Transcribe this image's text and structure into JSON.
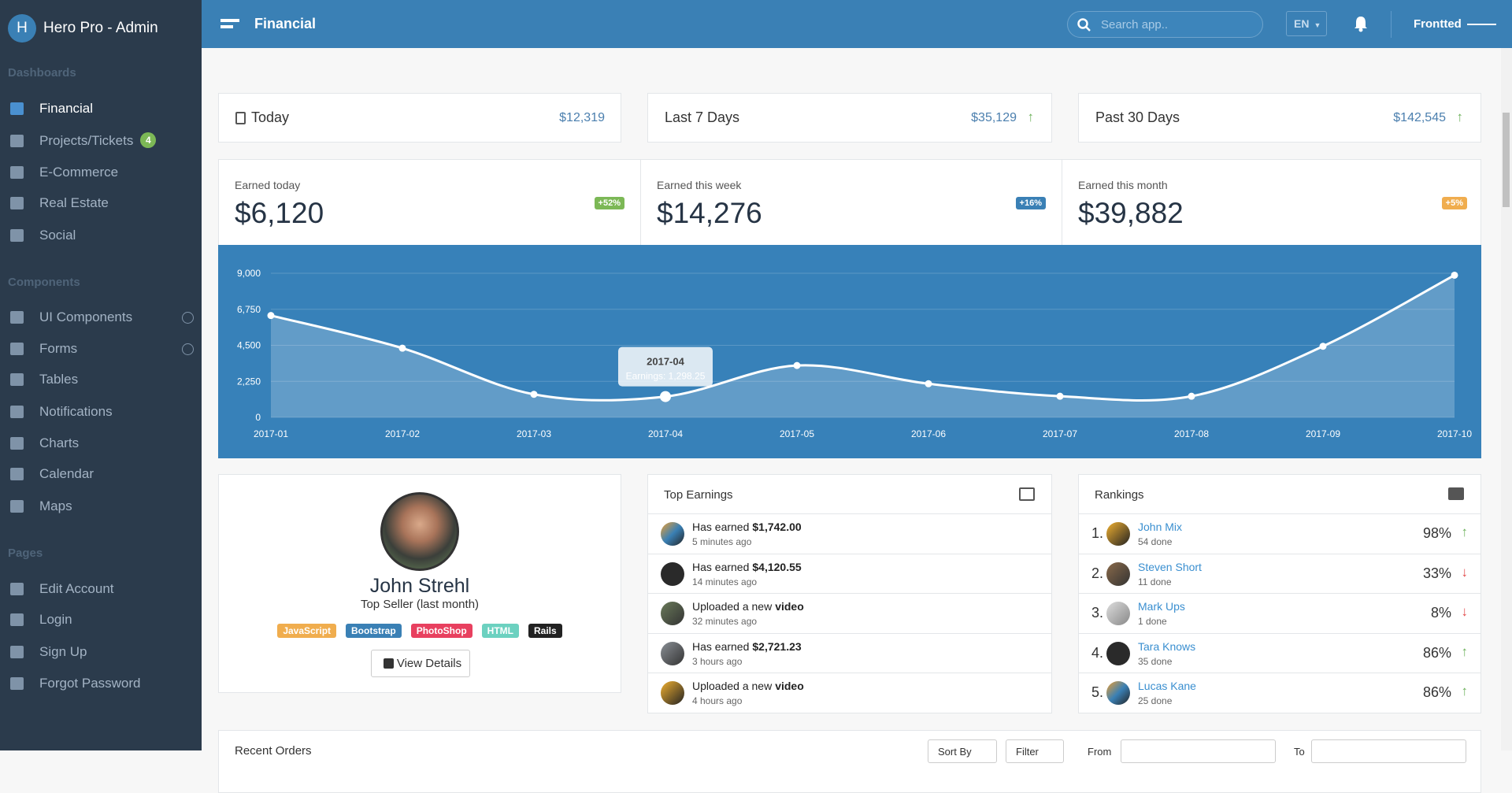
{
  "sidebar": {
    "logo": "H",
    "brand": "Hero Pro - Admin",
    "sections": [
      {
        "title": "Dashboards",
        "items": [
          {
            "label": "Financial"
          },
          {
            "label": "Projects/Tickets",
            "badge": "4"
          },
          {
            "label": "E-Commerce"
          },
          {
            "label": "Real Estate"
          },
          {
            "label": "Social"
          }
        ]
      },
      {
        "title": "Components",
        "items": [
          {
            "label": "UI Components"
          },
          {
            "label": "Forms"
          },
          {
            "label": "Tables"
          },
          {
            "label": "Notifications"
          },
          {
            "label": "Charts"
          },
          {
            "label": "Calendar"
          },
          {
            "label": "Maps"
          }
        ]
      },
      {
        "title": "Pages",
        "items": [
          {
            "label": "Edit Account"
          },
          {
            "label": "Login"
          },
          {
            "label": "Sign Up"
          },
          {
            "label": "Forgot Password"
          }
        ]
      }
    ]
  },
  "header": {
    "title": "Financial",
    "search_placeholder": "Search app..",
    "language": "EN",
    "user": "Frontted"
  },
  "summary": [
    {
      "label": "Today",
      "value": "$12,319"
    },
    {
      "label": "Last 7 Days",
      "value": "$35,129"
    },
    {
      "label": "Past 30 Days",
      "value": "$142,545"
    }
  ],
  "earnings": [
    {
      "label": "Earned today",
      "value": "$6,120",
      "change": "+52%",
      "color": "#7cb856"
    },
    {
      "label": "Earned this week",
      "value": "$14,276",
      "change": "+16%",
      "color": "#3a80b5"
    },
    {
      "label": "Earned this month",
      "value": "$39,882",
      "change": "+5%",
      "color": "#f0ad4e"
    }
  ],
  "chart_data": {
    "type": "line",
    "categories": [
      "2017-01",
      "2017-02",
      "2017-03",
      "2017-04",
      "2017-05",
      "2017-06",
      "2017-07",
      "2017-08",
      "2017-09",
      "2017-10"
    ],
    "series": [
      {
        "name": "Earnings",
        "color": "#ffffff",
        "values": [
          6360,
          4320,
          1440,
          1298.25,
          3240,
          2100,
          1320,
          1320,
          4440,
          8880
        ]
      }
    ],
    "ylim": [
      0,
      9000
    ],
    "yticks": [
      {
        "value": 0,
        "label": "0"
      },
      {
        "value": 2250,
        "label": "2,250"
      },
      {
        "value": 4500,
        "label": "4,500"
      },
      {
        "value": 6750,
        "label": "6,750"
      },
      {
        "value": 9000,
        "label": "9,000"
      }
    ],
    "grid": true,
    "tooltip": {
      "index": 3,
      "text": "Earnings: 1,298.25"
    }
  },
  "profile": {
    "name": "John Strehl",
    "role": "Top Seller (last month)",
    "tags": [
      {
        "label": "JavaScript",
        "color": "#f0ad4e"
      },
      {
        "label": "Bootstrap",
        "color": "#3a80b5"
      },
      {
        "label": "PhotoShop",
        "color": "#e8405f"
      },
      {
        "label": "HTML",
        "color": "#6cd1c0"
      },
      {
        "label": "Rails",
        "color": "#222222"
      }
    ],
    "button": "View Details"
  },
  "top_earnings": {
    "title": "Top Earnings",
    "items": [
      {
        "text": "Has earned",
        "bold": "$1,742.00",
        "time": "5 minutes ago"
      },
      {
        "text": "Has earned",
        "bold": "$4,120.55",
        "time": "14 minutes ago"
      },
      {
        "text": "Uploaded a new",
        "bold": "video",
        "time": "32 minutes ago"
      },
      {
        "text": "Has earned",
        "bold": "$2,721.23",
        "time": "3 hours ago"
      },
      {
        "text": "Uploaded a new",
        "bold": "video",
        "time": "4 hours ago"
      }
    ]
  },
  "rankings": {
    "title": "Rankings",
    "items": [
      {
        "rank": "1.",
        "name": "John Mix",
        "done": "54 done",
        "percent": "98%",
        "trend": "up"
      },
      {
        "rank": "2.",
        "name": "Steven Short",
        "done": "11 done",
        "percent": "33%",
        "trend": "down"
      },
      {
        "rank": "3.",
        "name": "Mark Ups",
        "done": "1 done",
        "percent": "8%",
        "trend": "down"
      },
      {
        "rank": "4.",
        "name": "Tara Knows",
        "done": "35 done",
        "percent": "86%",
        "trend": "up"
      },
      {
        "rank": "5.",
        "name": "Lucas Kane",
        "done": "25 done",
        "percent": "86%",
        "trend": "up"
      }
    ]
  },
  "orders": {
    "title": "Recent Orders",
    "sort": "Sort By",
    "filter": "Filter",
    "from": "From",
    "to": "To"
  }
}
